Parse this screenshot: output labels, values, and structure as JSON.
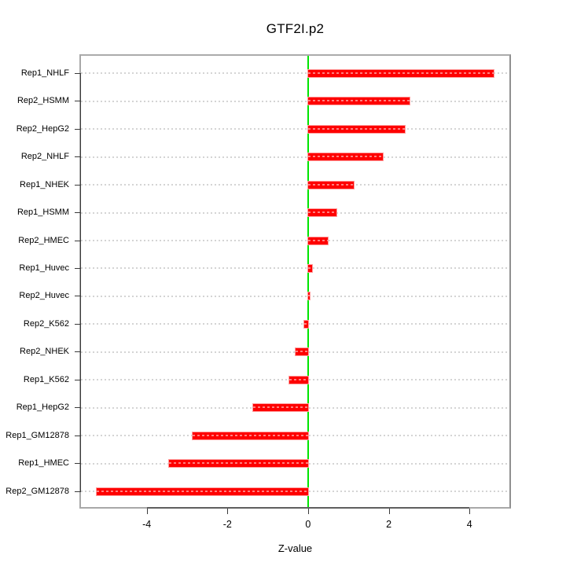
{
  "title": "GTF2I.p2",
  "chart_data": {
    "type": "bar",
    "orientation": "horizontal",
    "title": "GTF2I.p2",
    "xlabel": "Z-value",
    "ylabel": "",
    "categories": [
      "Rep1_NHLF",
      "Rep2_HSMM",
      "Rep2_HepG2",
      "Rep2_NHLF",
      "Rep1_NHEK",
      "Rep1_HSMM",
      "Rep2_HMEC",
      "Rep1_Huvec",
      "Rep2_Huvec",
      "Rep2_K562",
      "Rep2_NHEK",
      "Rep1_K562",
      "Rep1_HepG2",
      "Rep1_GM12878",
      "Rep1_HMEC",
      "Rep2_GM12878"
    ],
    "values": [
      4.6,
      2.51,
      2.4,
      1.86,
      1.14,
      0.71,
      0.49,
      0.09,
      0.04,
      -0.1,
      -0.31,
      -0.47,
      -1.36,
      -2.86,
      -3.45,
      -5.24
    ],
    "xlim": [
      -5.63,
      4.99
    ],
    "xticks": [
      -4,
      -2,
      0,
      2,
      4
    ],
    "xtick_labels": [
      "-4",
      "-2",
      "0",
      "2",
      "4"
    ],
    "grid": "horizontal dotted line per category",
    "legend": "none",
    "zero_reference_line": 0,
    "colors": {
      "bar": "#fe0000",
      "bar_border": "#ff9d9d",
      "bar_grid_overlay": "rgba(255,255,255,0.5)",
      "zero_line": "#00e400",
      "gridline": "#d4d4d4",
      "box": "#a8a8a8",
      "axis": "#3a3a3a",
      "text": "#000000"
    }
  }
}
